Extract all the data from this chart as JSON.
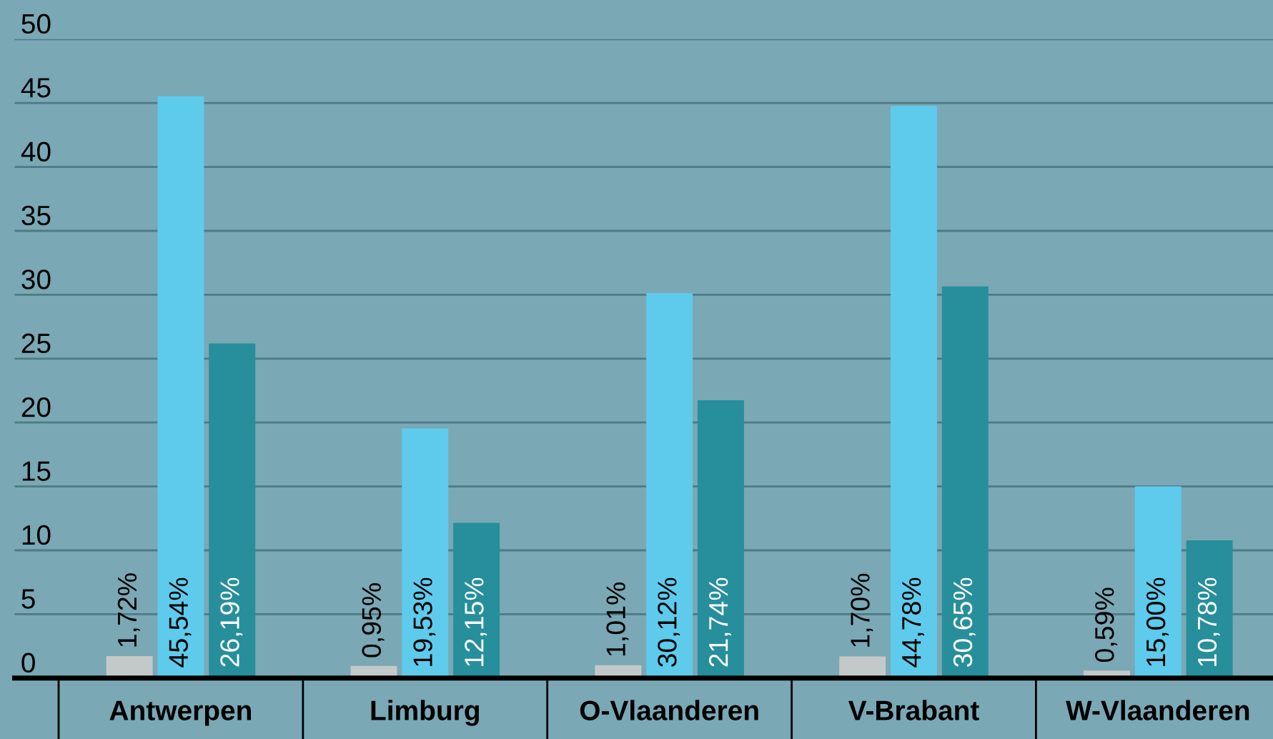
{
  "chart_data": {
    "type": "bar",
    "categories": [
      "Antwerpen",
      "Limburg",
      "O-Vlaanderen",
      "V-Brabant",
      "W-Vlaanderen"
    ],
    "series": [
      {
        "color": "#c3c9c9",
        "values": [
          1.72,
          0.95,
          1.01,
          1.7,
          0.59
        ],
        "value_labels": [
          "1,72%",
          "0,95%",
          "1,01%",
          "1,70%",
          "0,59%"
        ]
      },
      {
        "color": "#5ecbec",
        "values": [
          45.54,
          19.53,
          30.12,
          44.78,
          15.0
        ],
        "value_labels": [
          "45,54%",
          "19,53%",
          "30,12%",
          "44,78%",
          "15,00%"
        ]
      },
      {
        "color": "#268f9b",
        "values": [
          26.19,
          12.15,
          21.74,
          30.65,
          10.78
        ],
        "value_labels": [
          "26,19%",
          "12,15%",
          "21,74%",
          "30,65%",
          "10,78%"
        ]
      }
    ],
    "ylim": [
      0,
      50
    ],
    "yticks": [
      0,
      5,
      10,
      15,
      20,
      25,
      30,
      35,
      40,
      45,
      50
    ],
    "grid": "y",
    "legend": false
  }
}
